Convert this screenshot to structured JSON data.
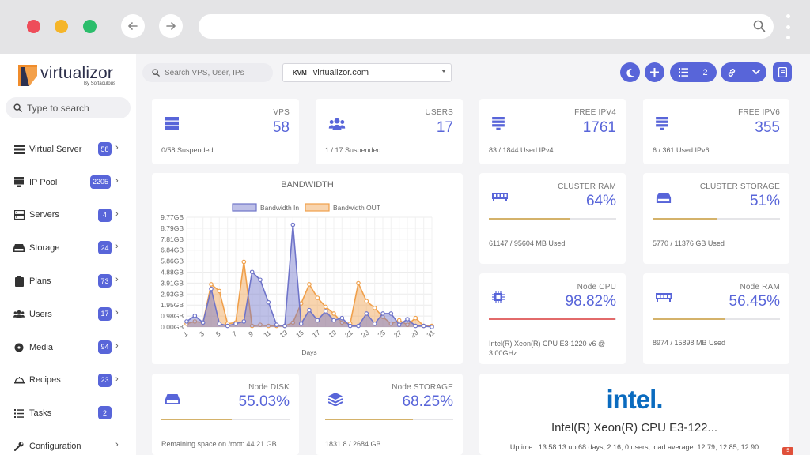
{
  "sidebar": {
    "logo_word": "virtualizor",
    "logo_by": "By Softaculous",
    "search_placeholder": "Type to search",
    "items": [
      {
        "label": "Virtual Server",
        "badge": "58",
        "icon": "server-stack-icon"
      },
      {
        "label": "IP Pool",
        "badge": "2205",
        "icon": "ip-pool-icon"
      },
      {
        "label": "Servers",
        "badge": "4",
        "icon": "servers-icon"
      },
      {
        "label": "Storage",
        "badge": "24",
        "icon": "storage-icon"
      },
      {
        "label": "Plans",
        "badge": "73",
        "icon": "plans-icon"
      },
      {
        "label": "Users",
        "badge": "17",
        "icon": "users-icon"
      },
      {
        "label": "Media",
        "badge": "94",
        "icon": "media-icon"
      },
      {
        "label": "Recipes",
        "badge": "23",
        "icon": "recipes-icon"
      },
      {
        "label": "Tasks",
        "badge": "2",
        "icon": "tasks-icon"
      },
      {
        "label": "Configuration",
        "badge": "",
        "icon": "configuration-icon"
      }
    ]
  },
  "toolbar": {
    "search_placeholder": "Search VPS, User, IPs",
    "server_type": "KVM",
    "server_host": "virtualizor.com",
    "tasks_count": "2"
  },
  "cards": {
    "vps": {
      "title": "VPS",
      "value": "58",
      "sub": "0/58 Suspended"
    },
    "users": {
      "title": "USERS",
      "value": "17",
      "sub": "1 / 17 Suspended"
    },
    "ipv4": {
      "title": "FREE IPV4",
      "value": "1761",
      "sub": "83 / 1844 Used IPv4"
    },
    "ipv6": {
      "title": "FREE IPV6",
      "value": "355",
      "sub": "6 / 361 Used IPv6"
    },
    "cluster_ram": {
      "title": "CLUSTER RAM",
      "value": "64%",
      "sub": "61147 / 95604 MB Used",
      "fraction": 0.64
    },
    "cluster_storage": {
      "title": "CLUSTER STORAGE",
      "value": "51%",
      "sub": "5770 / 11376 GB Used",
      "fraction": 0.51
    },
    "node_cpu": {
      "title": "Node CPU",
      "value": "98.82%",
      "sub": "Intel(R) Xeon(R) CPU E3-1220 v6 @ 3.00GHz",
      "fraction": 0.9882
    },
    "node_ram": {
      "title": "Node RAM",
      "value": "56.45%",
      "sub": "8974 / 15898 MB Used",
      "fraction": 0.5645
    },
    "node_disk": {
      "title": "Node DISK",
      "value": "55.03%",
      "sub": "Remaining space on /root: 44.21 GB",
      "fraction": 0.5503
    },
    "node_storage": {
      "title": "Node STORAGE",
      "value": "68.25%",
      "sub": "1831.8 / 2684 GB",
      "fraction": 0.6825
    }
  },
  "intel": {
    "logo": "intel.",
    "cpu": "Intel(R) Xeon(R) CPU E3-122...",
    "uptime": "Uptime : 13:58:13 up 68 days, 2:16, 0 users, load average: 12.79, 12.85, 12.90"
  },
  "corner_badge": "5",
  "colors": {
    "accent": "#5865d9",
    "bandwidth_in": "#6f74c9",
    "bandwidth_out": "#f0a04b",
    "progress": "#d4b26a",
    "progress_cpu": "#e26a6a"
  },
  "chart_data": {
    "type": "area",
    "title": "BANDWIDTH",
    "xlabel": "Days",
    "ylabel": "",
    "x": [
      1,
      2,
      3,
      4,
      5,
      6,
      7,
      8,
      9,
      10,
      11,
      12,
      13,
      14,
      15,
      16,
      17,
      18,
      19,
      20,
      21,
      22,
      23,
      24,
      25,
      26,
      27,
      28,
      29,
      30,
      31
    ],
    "x_ticks": [
      "1",
      "3",
      "5",
      "7",
      "9",
      "11",
      "13",
      "15",
      "17",
      "19",
      "21",
      "23",
      "25",
      "27",
      "29",
      "31"
    ],
    "y_ticks": [
      "0.00GB",
      "0.98GB",
      "1.95GB",
      "2.93GB",
      "3.91GB",
      "4.88GB",
      "5.86GB",
      "6.84GB",
      "7.81GB",
      "8.79GB",
      "9.77GB"
    ],
    "ylim": [
      0,
      9.77
    ],
    "legend_position": "top",
    "grid": true,
    "series": [
      {
        "name": "Bandwidth In",
        "values": [
          0.5,
          1.0,
          0.4,
          3.4,
          0.3,
          0.1,
          0.3,
          0.5,
          4.9,
          4.2,
          2.2,
          0.2,
          0.1,
          9.1,
          0.3,
          1.5,
          0.6,
          1.4,
          0.6,
          0.8,
          0.1,
          0.1,
          1.2,
          0.3,
          1.2,
          1.2,
          0.2,
          0.7,
          0.1,
          0.1,
          0.0
        ]
      },
      {
        "name": "Bandwidth OUT",
        "values": [
          0.3,
          0.5,
          0.4,
          3.8,
          3.2,
          0.3,
          0.4,
          5.8,
          0.1,
          0.2,
          0.1,
          0.1,
          0.1,
          0.4,
          2.1,
          3.8,
          2.6,
          1.8,
          1.2,
          0.4,
          0.3,
          3.9,
          2.3,
          1.7,
          0.9,
          0.3,
          0.6,
          0.2,
          0.8,
          0.1,
          0.1
        ]
      }
    ]
  }
}
